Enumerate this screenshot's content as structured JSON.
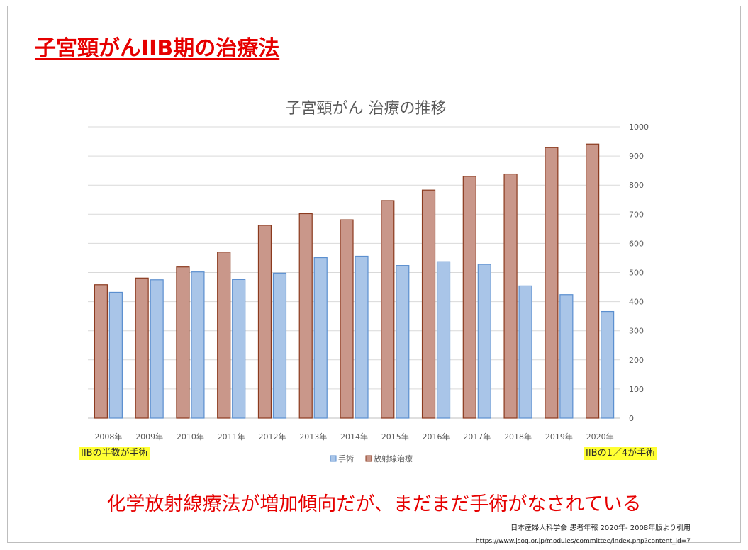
{
  "slide": {
    "title": "子宮頸がんIIB期の治療法",
    "callout_left": "IIBの半数が手術",
    "callout_right": "IIBの1／4が手術",
    "conclusion": "化学放射線療法が増加傾向だが、まだまだ手術がなされている",
    "source": "日本産婦人科学会 患者年報 2020年- 2008年版より引用",
    "url": "https://www.jsog.or.jp/modules/committee/index.php?content_id=7"
  },
  "colors": {
    "surgery_fill": "#a9c5e8",
    "surgery_stroke": "#5b8fcf",
    "radiation_fill": "#c9978a",
    "radiation_stroke": "#8b3a1e",
    "title_red": "#e60000",
    "callout_yellow": "#ffff33"
  },
  "chart_data": {
    "type": "bar",
    "title": "子宮頸がん 治療の推移",
    "xlabel": "",
    "ylabel": "",
    "categories": [
      "2008年",
      "2009年",
      "2010年",
      "2011年",
      "2012年",
      "2013年",
      "2014年",
      "2015年",
      "2016年",
      "2017年",
      "2018年",
      "2019年",
      "2020年"
    ],
    "series": [
      {
        "name": "放射線治療",
        "values": [
          458,
          481,
          519,
          570,
          662,
          702,
          681,
          747,
          783,
          830,
          838,
          929,
          941
        ]
      },
      {
        "name": "手術",
        "values": [
          432,
          475,
          502,
          476,
          498,
          551,
          556,
          524,
          537,
          528,
          454,
          424,
          366
        ]
      }
    ],
    "legend_order": [
      "手術",
      "放射線治療"
    ],
    "legend_position": "bottom",
    "ylim": [
      0,
      1000
    ],
    "yticks": [
      0,
      100,
      200,
      300,
      400,
      500,
      600,
      700,
      800,
      900,
      1000
    ],
    "y_axis_side": "right",
    "grid": true
  }
}
